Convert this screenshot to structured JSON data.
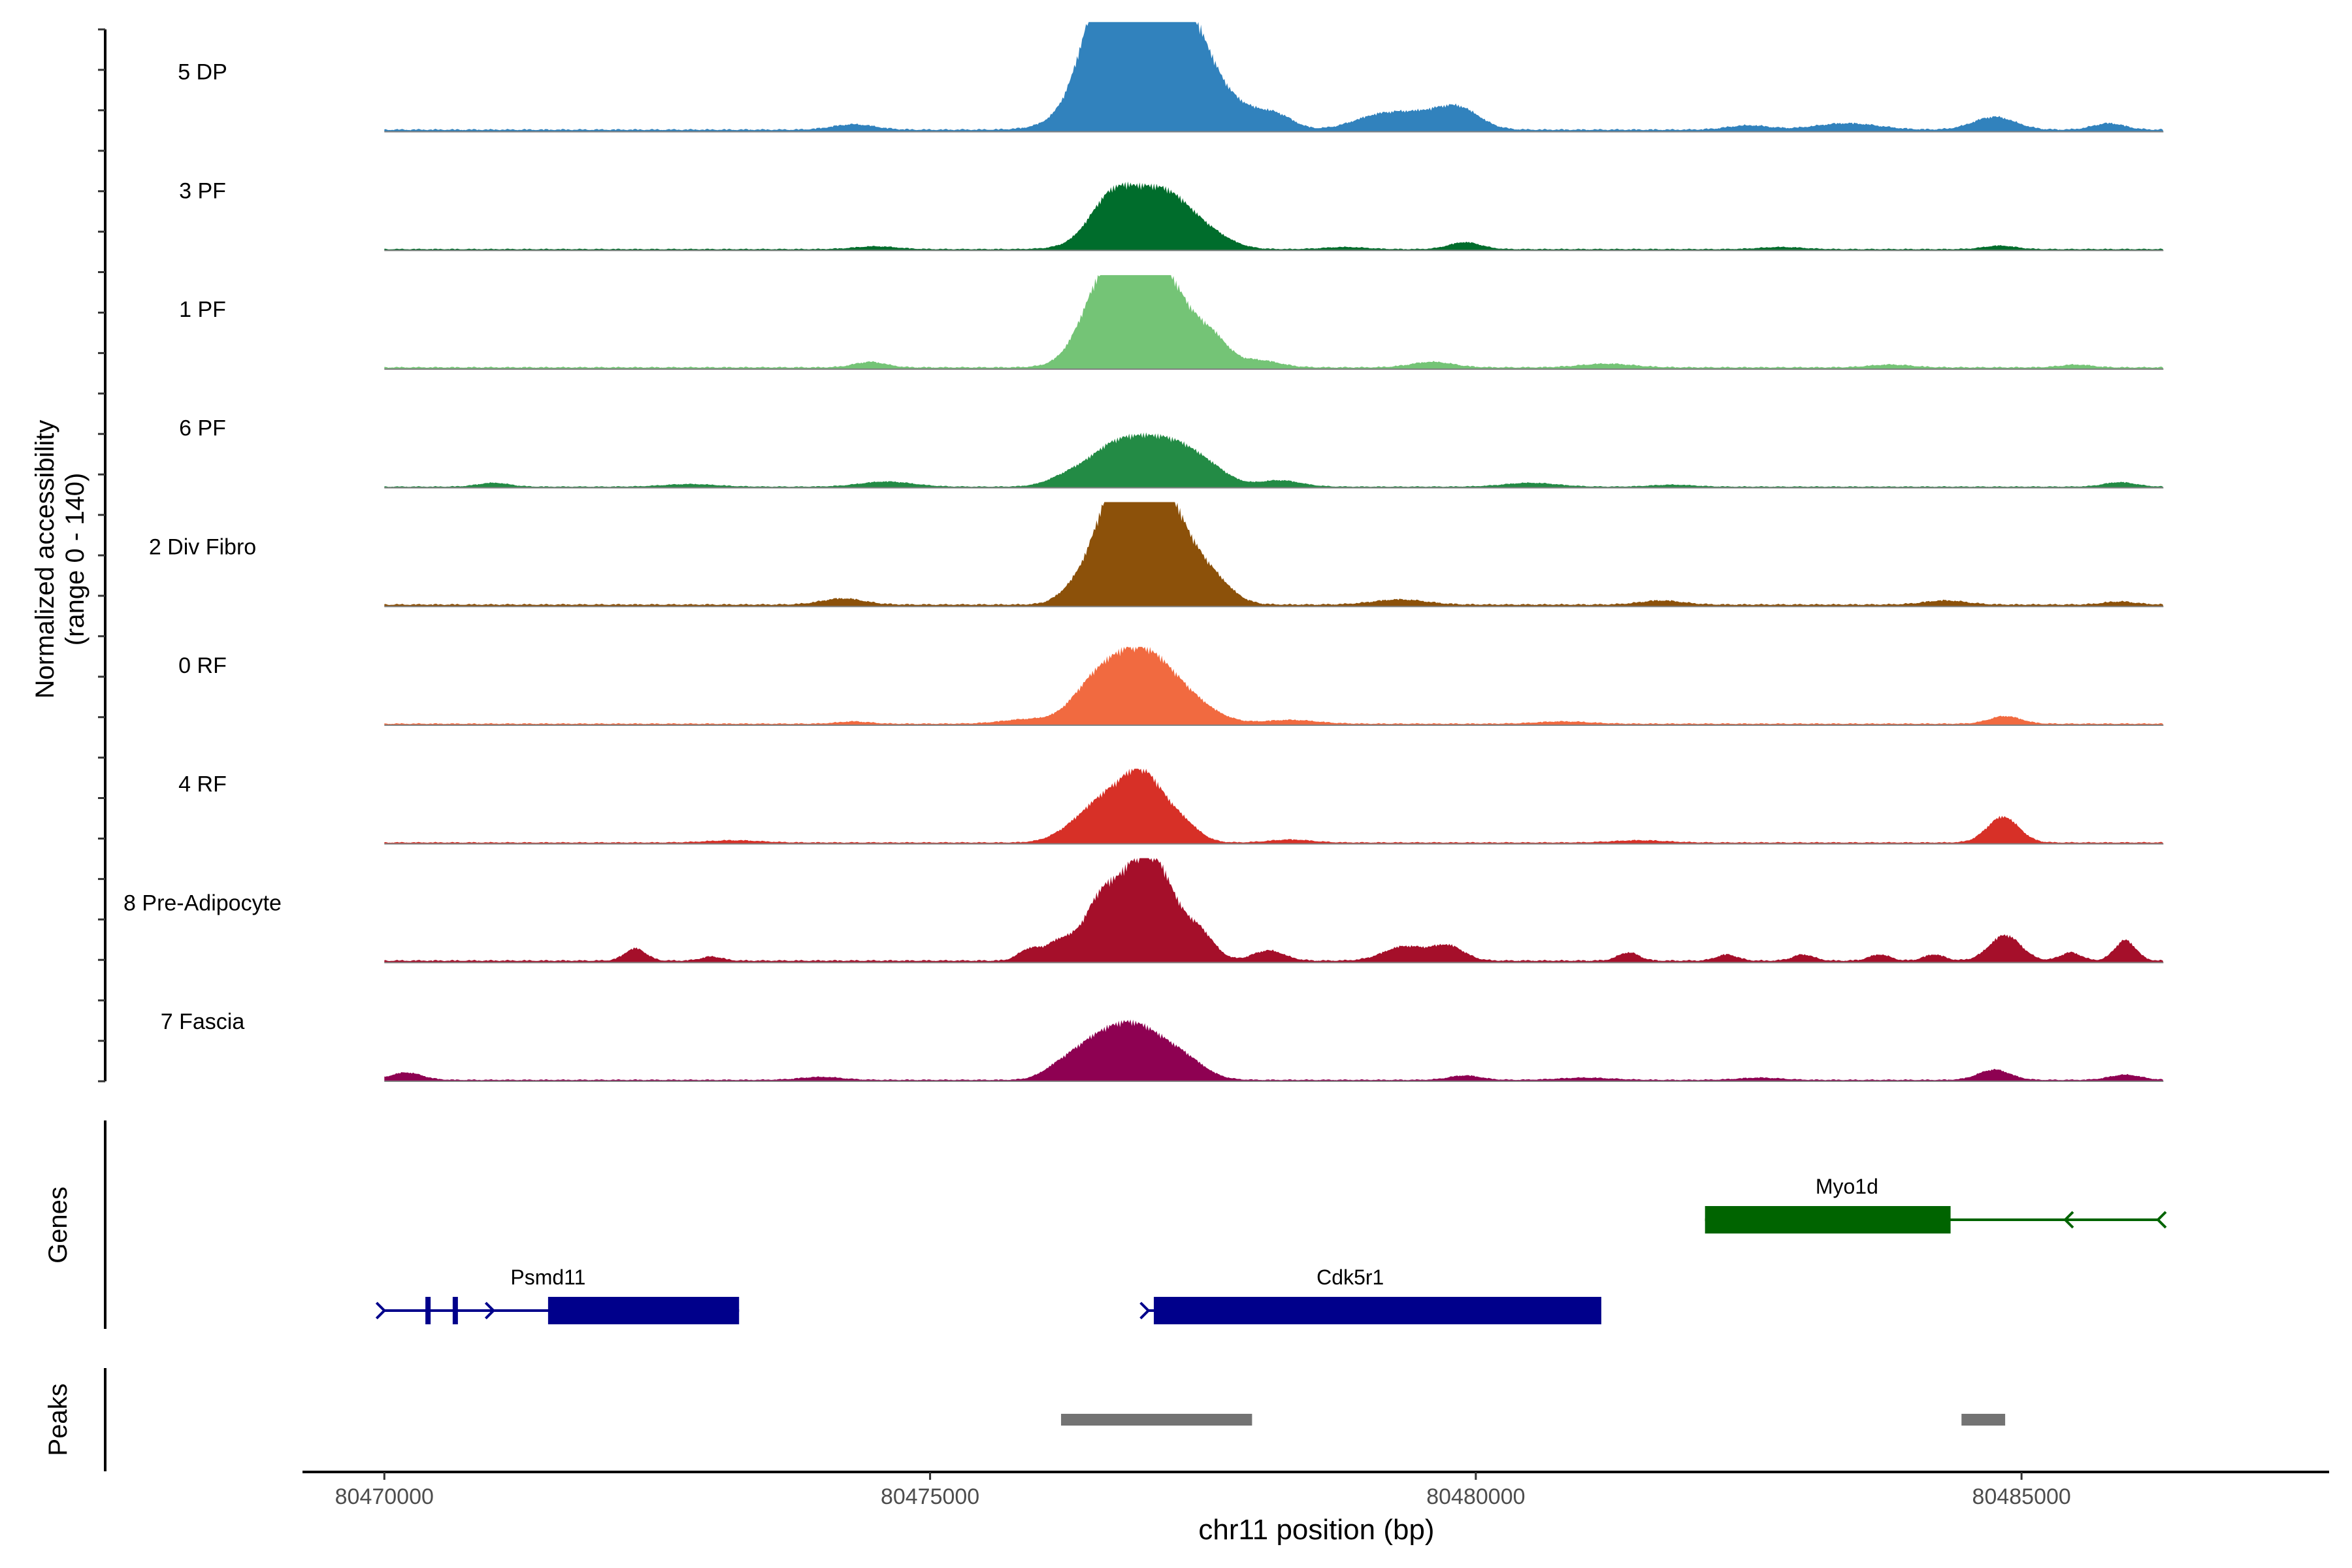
{
  "chart_data": {
    "type": "area",
    "y_axis_title": "Normalized accessibility",
    "y_axis_subtitle": "(range 0 - 140)",
    "y_range": [
      0,
      140
    ],
    "x_axis_title": "chr11 position (bp)",
    "x_range": [
      80469250,
      80487100
    ],
    "x_ticks": [
      {
        "value": 80470000,
        "label": "80470000"
      },
      {
        "value": 80475000,
        "label": "80475000"
      },
      {
        "value": 80480000,
        "label": "80480000"
      },
      {
        "value": 80485000,
        "label": "80485000"
      }
    ],
    "track_start": 80470000,
    "track_end": 80486300,
    "tracks": [
      {
        "name": "5 DP",
        "color": "#3182bd",
        "peak_height": 105,
        "peaks": [
          [
            80476950,
            8,
            95
          ],
          [
            80476650,
            5,
            60
          ],
          [
            80477200,
            6,
            55
          ],
          [
            80476500,
            3,
            20
          ],
          [
            80477450,
            4,
            20
          ],
          [
            80477900,
            5,
            15
          ],
          [
            80478200,
            3,
            8
          ],
          [
            80479100,
            5,
            12
          ],
          [
            80479500,
            5,
            12
          ],
          [
            80479850,
            4,
            18
          ],
          [
            80484750,
            4,
            12
          ],
          [
            80485800,
            3,
            6
          ],
          [
            80474300,
            4,
            5
          ],
          [
            80483400,
            6,
            6
          ],
          [
            80482500,
            4,
            4
          ]
        ]
      },
      {
        "name": "3 PF",
        "color": "#006d2c",
        "peak_height": 68,
        "peaks": [
          [
            80476950,
            7,
            55
          ],
          [
            80476650,
            4,
            45
          ],
          [
            80477200,
            5,
            40
          ],
          [
            80477600,
            4,
            12
          ],
          [
            80479900,
            3,
            10
          ],
          [
            80474500,
            4,
            4
          ],
          [
            80484800,
            3,
            5
          ],
          [
            80482800,
            4,
            3
          ],
          [
            80478800,
            4,
            3
          ]
        ]
      },
      {
        "name": "1 PF",
        "color": "#74c476",
        "peak_height": 90,
        "peaks": [
          [
            80476800,
            6,
            75
          ],
          [
            80477000,
            5,
            60
          ],
          [
            80476550,
            4,
            40
          ],
          [
            80477300,
            4,
            35
          ],
          [
            80477600,
            3,
            25
          ],
          [
            80478000,
            4,
            8
          ],
          [
            80479600,
            4,
            6
          ],
          [
            80474450,
            3,
            6
          ],
          [
            80481200,
            5,
            4
          ],
          [
            80483800,
            4,
            3
          ],
          [
            80485500,
            3,
            3
          ]
        ]
      },
      {
        "name": "6 PF",
        "color": "#238b45",
        "peak_height": 62,
        "peaks": [
          [
            80476650,
            4,
            50
          ],
          [
            80476950,
            4,
            52
          ],
          [
            80477250,
            4,
            50
          ],
          [
            80477550,
            4,
            28
          ],
          [
            80476300,
            4,
            20
          ],
          [
            80474600,
            5,
            8
          ],
          [
            80478200,
            4,
            10
          ],
          [
            80480500,
            5,
            6
          ],
          [
            80471000,
            3,
            6
          ],
          [
            80485900,
            3,
            7
          ],
          [
            80472800,
            5,
            4
          ],
          [
            80481800,
            4,
            3
          ]
        ]
      },
      {
        "name": "2 Div Fibro",
        "color": "#8c510a",
        "peak_height": 100,
        "peaks": [
          [
            80476900,
            5,
            95
          ],
          [
            80476650,
            4,
            60
          ],
          [
            80477200,
            4,
            60
          ],
          [
            80477550,
            4,
            28
          ],
          [
            80476300,
            3,
            10
          ],
          [
            80474200,
            4,
            6
          ],
          [
            80479300,
            5,
            5
          ],
          [
            80481700,
            4,
            4
          ],
          [
            80484300,
            4,
            4
          ],
          [
            80485900,
            3,
            3
          ]
        ]
      },
      {
        "name": "0 RF",
        "color": "#f16a40",
        "peak_height": 75,
        "peaks": [
          [
            80476750,
            5,
            60
          ],
          [
            80477050,
            5,
            58
          ],
          [
            80476450,
            4,
            30
          ],
          [
            80477400,
            5,
            22
          ],
          [
            80475900,
            5,
            6
          ],
          [
            80484850,
            3,
            10
          ],
          [
            80478300,
            5,
            5
          ],
          [
            80474300,
            3,
            3
          ],
          [
            80480800,
            5,
            3
          ]
        ]
      },
      {
        "name": "4 RF",
        "color": "#d73027",
        "peak_height": 72,
        "peaks": [
          [
            80476650,
            4,
            55
          ],
          [
            80477050,
            4,
            58
          ],
          [
            80476900,
            3,
            35
          ],
          [
            80476350,
            4,
            20
          ],
          [
            80477350,
            3,
            15
          ],
          [
            80484830,
            3,
            35
          ],
          [
            80478300,
            4,
            4
          ],
          [
            80473200,
            5,
            3
          ],
          [
            80481500,
            5,
            3
          ]
        ]
      },
      {
        "name": "8 Pre-Adipocyte",
        "color": "#a50f2a",
        "peak_height": 100,
        "peaks": [
          [
            80476900,
            4,
            90
          ],
          [
            80476550,
            3,
            50
          ],
          [
            80477150,
            3,
            45
          ],
          [
            80477450,
            3,
            30
          ],
          [
            80476200,
            3,
            20
          ],
          [
            80478100,
            3,
            10
          ],
          [
            80479350,
            4,
            14
          ],
          [
            80479750,
            3,
            14
          ],
          [
            80484850,
            3,
            25
          ],
          [
            80485950,
            2,
            20
          ],
          [
            80472300,
            2,
            12
          ],
          [
            80475900,
            2,
            10
          ],
          [
            80485450,
            2,
            8
          ],
          [
            80481400,
            2,
            8
          ],
          [
            80482300,
            2,
            6
          ],
          [
            80483000,
            2,
            6
          ],
          [
            80483700,
            2,
            6
          ],
          [
            80484200,
            2,
            6
          ],
          [
            80473000,
            2,
            4
          ]
        ]
      },
      {
        "name": "7 Fascia",
        "color": "#8e0152",
        "peak_height": 72,
        "peaks": [
          [
            80476700,
            5,
            48
          ],
          [
            80477000,
            5,
            45
          ],
          [
            80476400,
            4,
            25
          ],
          [
            80477350,
            4,
            20
          ],
          [
            80476150,
            3,
            10
          ],
          [
            80470200,
            3,
            10
          ],
          [
            80484750,
            3,
            14
          ],
          [
            80485950,
            3,
            7
          ],
          [
            80479900,
            3,
            6
          ],
          [
            80474000,
            4,
            4
          ],
          [
            80481000,
            5,
            3
          ],
          [
            80482600,
            4,
            3
          ]
        ]
      }
    ],
    "genes_panel_label": "Genes",
    "genes": [
      {
        "name": "Myo1d",
        "strand": "-",
        "color": "#006400",
        "start": 80482100,
        "end": 80486250,
        "cds": [
          [
            80482100,
            80484350
          ]
        ],
        "arrows": [
          80485400,
          80486250
        ]
      },
      {
        "name": "Psmd11",
        "strand": "+",
        "color": "#00008b",
        "start": 80470000,
        "end": 80473250,
        "cds": [
          [
            80471500,
            80473250
          ]
        ],
        "exons": [
          80470400,
          80470650
        ],
        "arrows": [
          80470000,
          80471000
        ]
      },
      {
        "name": "Cdk5r1",
        "strand": "+",
        "color": "#00008b",
        "start": 80477000,
        "end": 80481150,
        "cds": [
          [
            80477050,
            80481150
          ]
        ],
        "arrows": [
          80477000
        ]
      }
    ],
    "peaks_panel_label": "Peaks",
    "peaks_color": "#737373",
    "peak_regions": [
      {
        "start": 80476200,
        "end": 80477950
      },
      {
        "start": 80484450,
        "end": 80484850
      }
    ]
  }
}
